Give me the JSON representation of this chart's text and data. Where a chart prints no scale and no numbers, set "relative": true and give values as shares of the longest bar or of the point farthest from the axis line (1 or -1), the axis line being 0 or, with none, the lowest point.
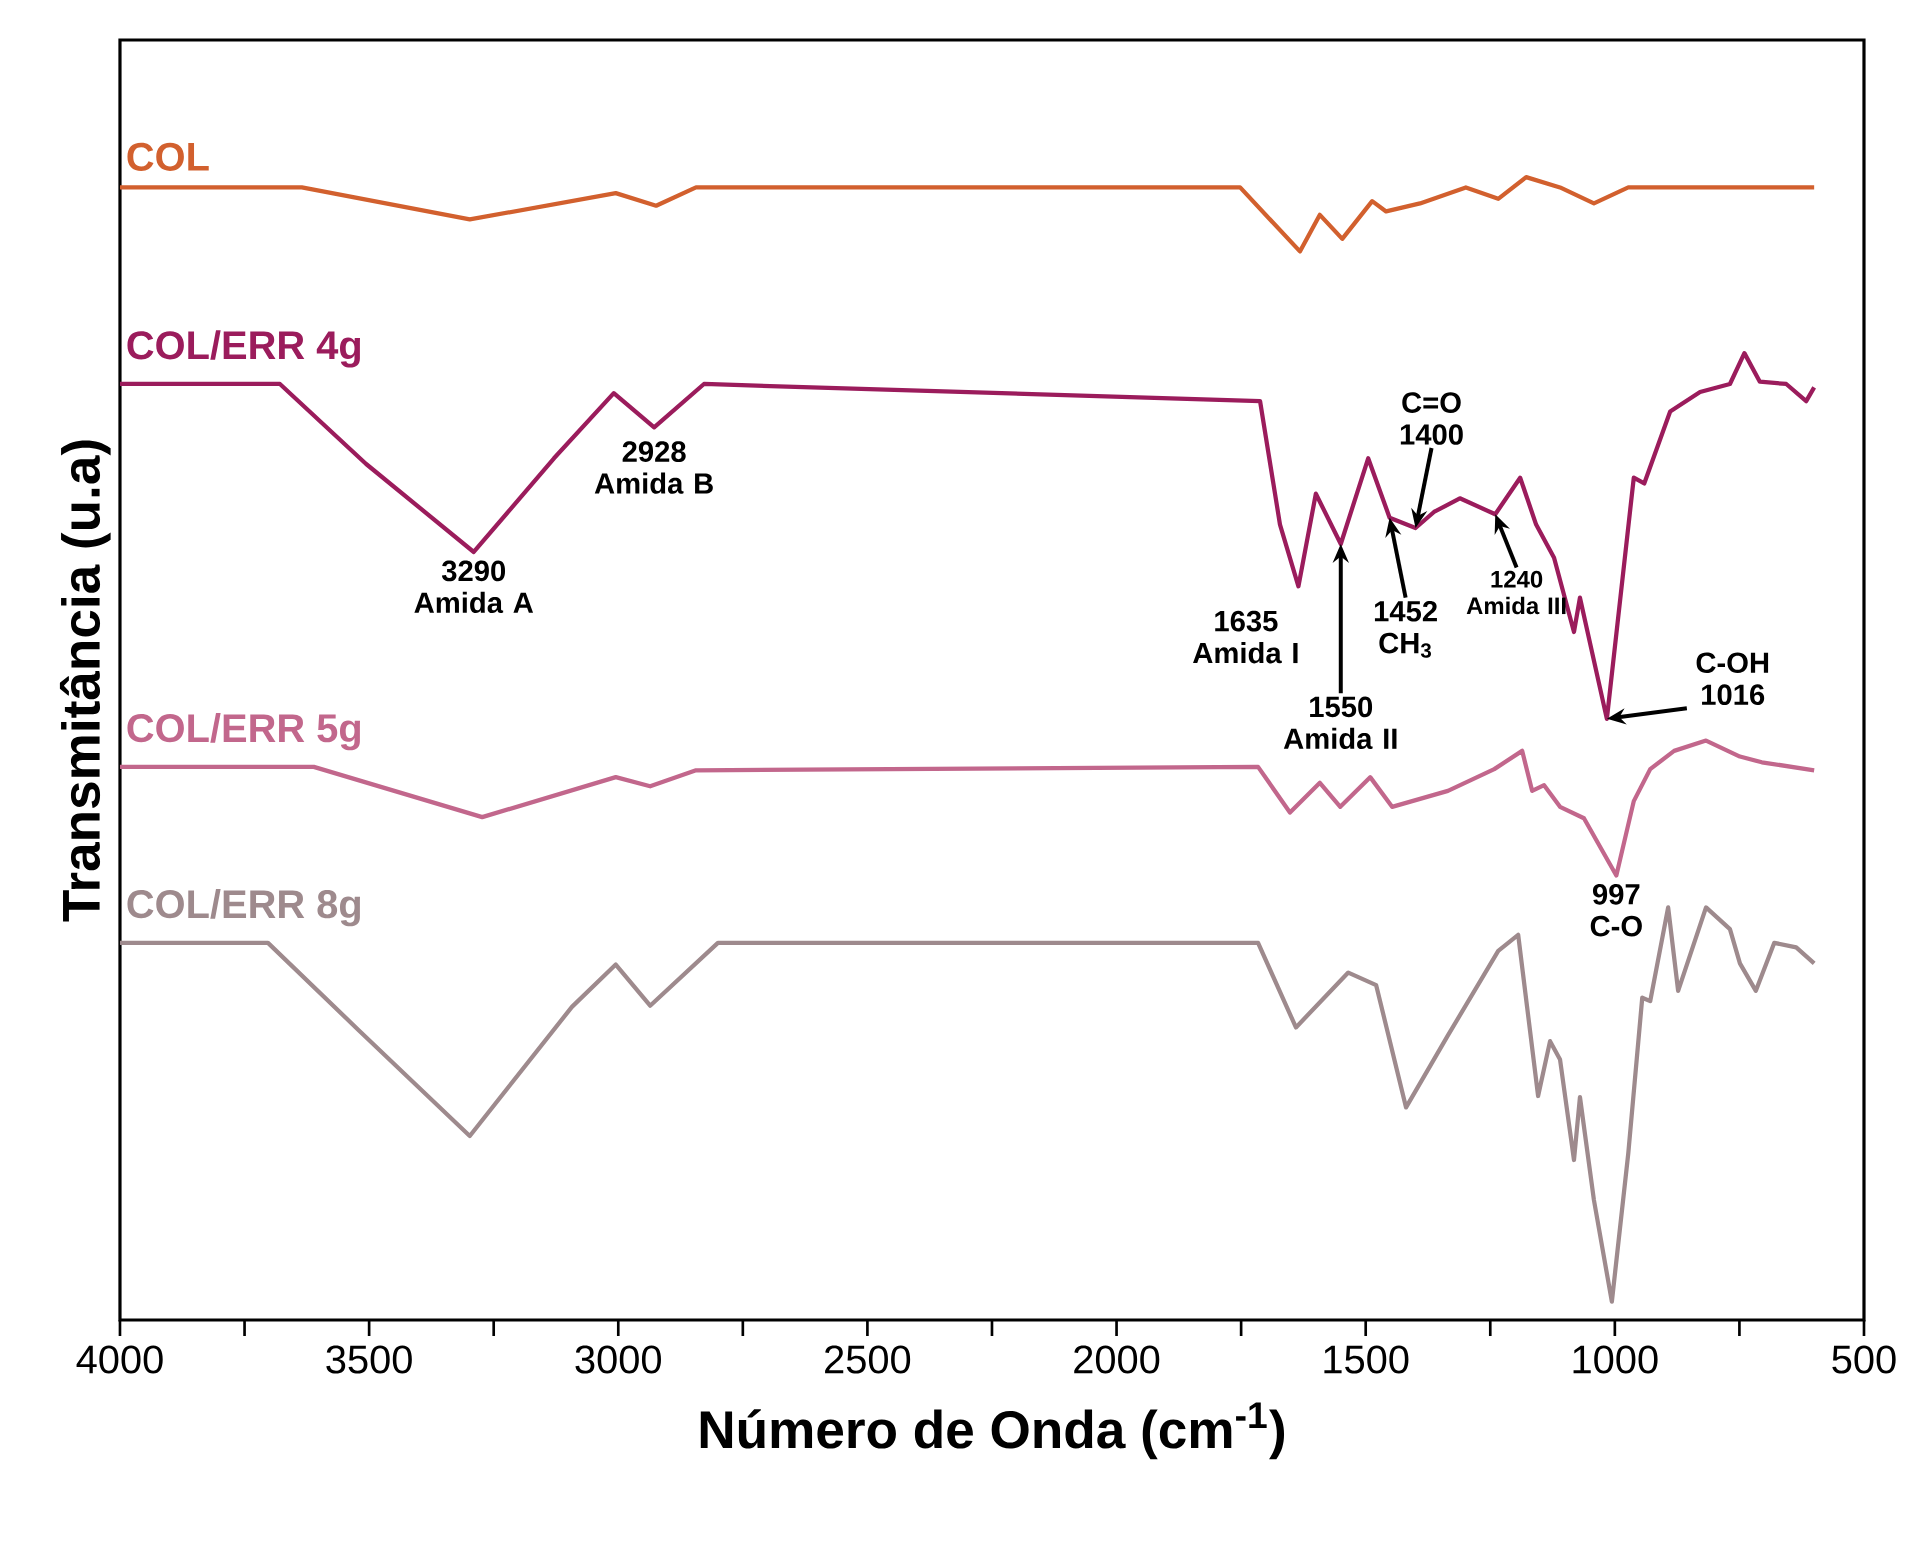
{
  "chart_data": {
    "type": "line",
    "relative": true,
    "xlabel": "Número de Onda (cm$^{-1}$)",
    "ylabel": "Transmitância (u.a)",
    "xlim": [
      4000,
      500
    ],
    "xticks": [
      4000,
      {
        "value": 3750,
        "label": null
      },
      3500,
      {
        "value": 3250,
        "label": null
      },
      3000,
      {
        "value": 2750,
        "label": null
      },
      2500,
      {
        "value": 2250,
        "label": null
      },
      2000,
      {
        "value": 1750,
        "label": null
      },
      1500,
      {
        "value": 1250,
        "label": null
      },
      1000,
      {
        "value": 750,
        "label": null
      },
      500
    ],
    "series": [
      {
        "name": "COL",
        "color": "#d2602e",
        "x": [
          4000,
          3635,
          3298,
          3005,
          2924,
          2844,
          1752,
          1632,
          1592,
          1547,
          1487,
          1459,
          1391,
          1299,
          1234,
          1178,
          1110,
          1042,
          973,
          600
        ],
        "values": [
          0.991,
          0.991,
          0.963,
          0.986,
          0.975,
          0.991,
          0.991,
          0.935,
          0.967,
          0.946,
          0.979,
          0.97,
          0.977,
          0.991,
          0.981,
          1.0,
          0.991,
          0.977,
          0.991,
          0.991
        ]
      },
      {
        "name": "COL/ERR 4g",
        "color": "#9b1c5c",
        "x": [
          4000,
          3679,
          3506,
          3290,
          3129,
          3009,
          2928,
          2828,
          1712,
          1672,
          1635,
          1600,
          1550,
          1495,
          1452,
          1400,
          1363,
          1311,
          1240,
          1190,
          1158,
          1122,
          1082,
          1070,
          1016,
          962,
          941,
          889,
          829,
          769,
          740,
          709,
          656,
          616,
          600
        ],
        "values": [
          0.819,
          0.819,
          0.749,
          0.672,
          0.754,
          0.811,
          0.781,
          0.819,
          0.804,
          0.696,
          0.642,
          0.723,
          0.679,
          0.754,
          0.702,
          0.693,
          0.707,
          0.719,
          0.705,
          0.737,
          0.696,
          0.667,
          0.602,
          0.632,
          0.526,
          0.737,
          0.732,
          0.795,
          0.812,
          0.819,
          0.846,
          0.821,
          0.819,
          0.804,
          0.816
        ]
      },
      {
        "name": "COL/ERR 5g",
        "color": "#c2678c",
        "x": [
          4000,
          3611,
          3273,
          3005,
          2936,
          2844,
          1716,
          1652,
          1592,
          1551,
          1491,
          1447,
          1335,
          1242,
          1186,
          1166,
          1142,
          1110,
          1062,
          997,
          962,
          929,
          881,
          817,
          749,
          705,
          600
        ],
        "values": [
          0.484,
          0.484,
          0.44,
          0.475,
          0.467,
          0.481,
          0.484,
          0.444,
          0.47,
          0.449,
          0.475,
          0.449,
          0.463,
          0.482,
          0.498,
          0.463,
          0.468,
          0.449,
          0.439,
          0.389,
          0.454,
          0.482,
          0.498,
          0.507,
          0.493,
          0.488,
          0.481
        ]
      },
      {
        "name": "COL/ERR 8g",
        "color": "#9e8a8d",
        "x": [
          4000,
          3703,
          3522,
          3298,
          3093,
          3005,
          2936,
          2800,
          1716,
          1640,
          1535,
          1479,
          1419,
          1335,
          1234,
          1194,
          1154,
          1130,
          1110,
          1082,
          1070,
          1042,
          1006,
          973,
          945,
          929,
          893,
          873,
          817,
          769,
          749,
          717,
          680,
          636,
          600
        ],
        "values": [
          0.33,
          0.33,
          0.254,
          0.161,
          0.274,
          0.311,
          0.275,
          0.33,
          0.33,
          0.256,
          0.304,
          0.293,
          0.186,
          0.249,
          0.323,
          0.337,
          0.196,
          0.244,
          0.228,
          0.14,
          0.195,
          0.105,
          0.016,
          0.146,
          0.282,
          0.279,
          0.361,
          0.288,
          0.361,
          0.342,
          0.312,
          0.288,
          0.33,
          0.326,
          0.312
        ]
      }
    ],
    "annotations": [
      {
        "text": "3290 Amida A",
        "x": 3290,
        "y": 0.672
      },
      {
        "text": "2928 Amida B",
        "x": 2928,
        "y": 0.781
      },
      {
        "text": "1635 Amida I",
        "x": 1635,
        "y": 0.642
      },
      {
        "text": "1550 Amida II",
        "x": 1550,
        "y": 0.679
      },
      {
        "text": "1452 CH$_{3}$",
        "x": 1452,
        "y": 0.702
      },
      {
        "text": "C=O 1400",
        "x": 1400,
        "y": 0.693
      },
      {
        "text": "1240 Amida III",
        "x": 1240,
        "y": 0.705
      },
      {
        "text": "C-OH 1016",
        "x": 1016,
        "y": 0.526
      },
      {
        "text": "997 C-O",
        "x": 997,
        "y": 0.389
      }
    ]
  }
}
